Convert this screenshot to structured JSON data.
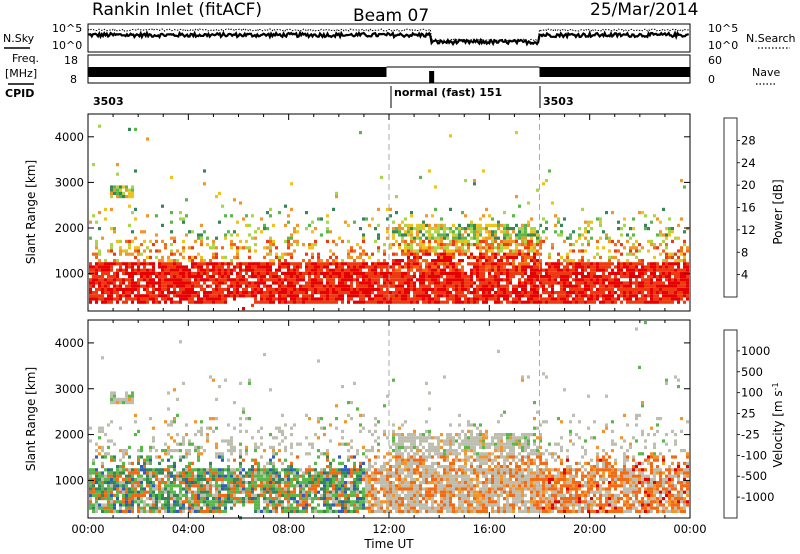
{
  "header": {
    "station": "Rankin Inlet (fitACF)",
    "beam": "Beam 07",
    "date": "25/Mar/2014"
  },
  "panels": {
    "nsky_label": "N.Sky",
    "nsearch_label": "N.Search",
    "noise_ticks": [
      "10^5",
      "10^0"
    ],
    "freq_label": [
      "Freq.",
      "[MHz]"
    ],
    "freq_ticks": [
      "18",
      "8"
    ],
    "nave_label": "Nave",
    "nave_ticks": [
      "60",
      "0"
    ],
    "cpid_label": "CPID",
    "cpid_segments": [
      "3503",
      "normal (fast) 151",
      "3503"
    ]
  },
  "chart_data": [
    {
      "type": "heatmap",
      "name": "power",
      "xlabel": "",
      "ylabel": "Slant Range [km]",
      "xlim_hours": [
        0,
        24
      ],
      "ylim_km": [
        180,
        4500
      ],
      "yticks": [
        "1000",
        "2000",
        "3000",
        "4000"
      ],
      "colorbar_title": "Power [dB]",
      "colorbar_labels": [
        "28",
        "24",
        "20",
        "16",
        "12",
        "8",
        "4"
      ],
      "colorbar_colors": [
        "#0a2cff",
        "#2f5cc0",
        "#35875a",
        "#59b84a",
        "#a8d648",
        "#f0c21a",
        "#f4952a",
        "#f36a13",
        "#ee3a10",
        "#e60000"
      ]
    },
    {
      "type": "heatmap",
      "name": "velocity",
      "xlabel": "Time UT",
      "ylabel": "Slant Range [km]",
      "xlim_hours": [
        0,
        24
      ],
      "ylim_km": [
        180,
        4500
      ],
      "xticks": [
        "00:00",
        "04:00",
        "08:00",
        "12:00",
        "16:00",
        "20:00",
        "00:00"
      ],
      "yticks": [
        "1000",
        "2000",
        "3000",
        "4000"
      ],
      "colorbar_title": "Velocity [m s",
      "colorbar_sup": "-1",
      "colorbar_labels": [
        "1000",
        "500",
        "100",
        "25",
        "-25",
        "-100",
        "-500",
        "-1000"
      ],
      "colorbar_colors": [
        "#e60000",
        "#f23a10",
        "#f36a13",
        "#f4952a",
        "#f6b44a",
        "#bdbdb0",
        "#a8d648",
        "#59b84a",
        "#35875a",
        "#2f5cc0",
        "#1f3fb8"
      ]
    }
  ]
}
